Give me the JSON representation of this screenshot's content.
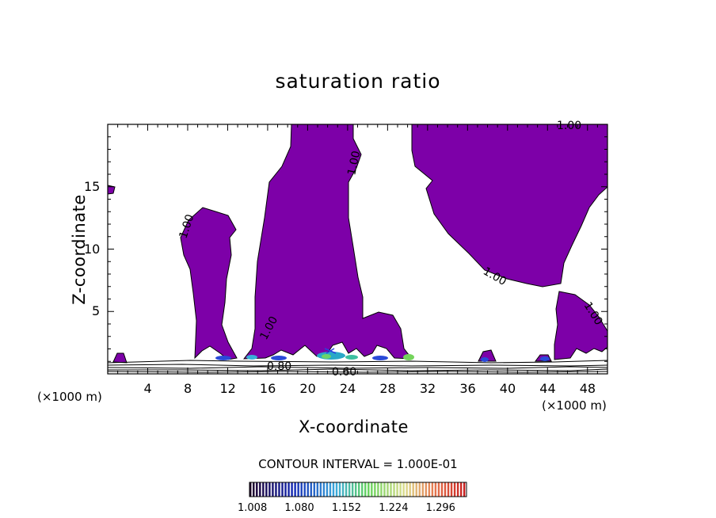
{
  "chart_data": {
    "type": "contour",
    "title": "saturation ratio",
    "xlabel": "X-coordinate",
    "ylabel": "Z-coordinate",
    "x_unit": "(×1000 m)",
    "x_unit_right": "(×1000 m)",
    "xlim": [
      0,
      50
    ],
    "ylim": [
      0,
      20
    ],
    "x_ticks": [
      4,
      8,
      12,
      16,
      20,
      24,
      28,
      32,
      36,
      40,
      44,
      48
    ],
    "y_ticks": [
      5,
      10,
      15
    ],
    "contour_labels": [
      "1.00",
      "1.00",
      "1.00",
      "1.00",
      "1.00",
      "1.00",
      "0.80",
      "0.60"
    ],
    "fill_color": "#7d00a8",
    "contour_interval": "CONTOUR INTERVAL = 1.000E-01",
    "colorbar_ticks": [
      "1.008",
      "1.080",
      "1.152",
      "1.224",
      "1.296"
    ],
    "colorbar_range": [
      1.008,
      1.34
    ],
    "grid": false
  }
}
